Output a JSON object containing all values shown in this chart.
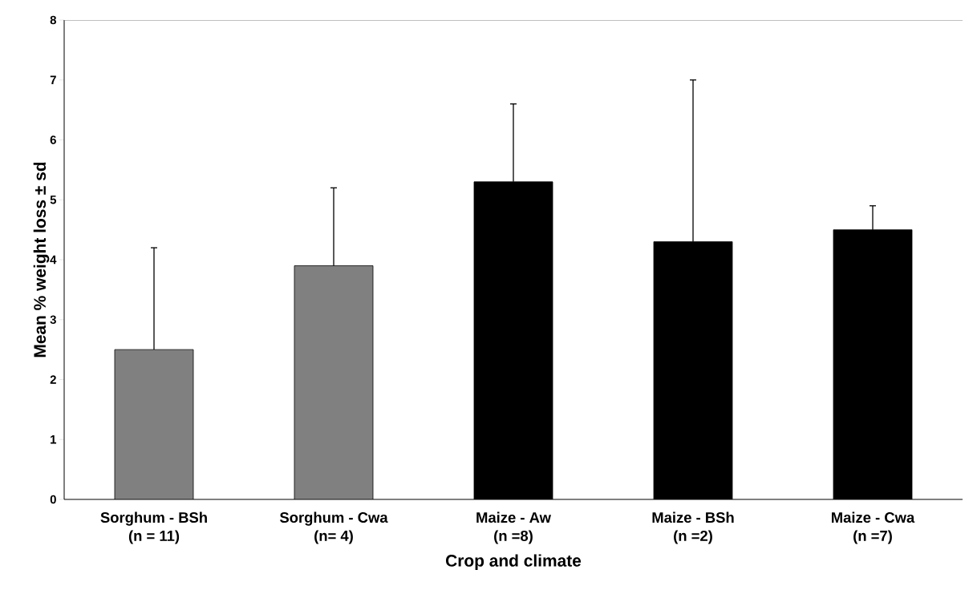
{
  "chart_data": {
    "type": "bar",
    "xlabel": "Crop and climate",
    "ylabel": "Mean % weight  loss ± sd",
    "categories": [
      "Sorghum - BSh\n(n = 11)",
      "Sorghum - Cwa\n(n= 4)",
      "Maize - Aw\n(n =8)",
      "Maize - BSh\n(n =2)",
      "Maize - Cwa\n(n =7)"
    ],
    "values": [
      2.5,
      3.9,
      5.3,
      4.3,
      4.5
    ],
    "colors": [
      "#808080",
      "#808080",
      "#000000",
      "#000000",
      "#000000"
    ],
    "errors": [
      [
        2.5,
        4.2
      ],
      [
        3.9,
        5.2
      ],
      [
        5.3,
        6.6
      ],
      [
        4.3,
        7.0
      ],
      [
        4.5,
        4.9
      ]
    ],
    "ylim": [
      0,
      8
    ],
    "yticks": [
      0,
      1,
      2,
      3,
      4,
      5,
      6,
      7,
      8
    ],
    "grid": false
  }
}
